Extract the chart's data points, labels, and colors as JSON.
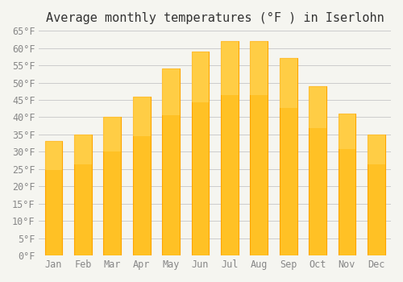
{
  "title": "Average monthly temperatures (°F ) in Iserlohn",
  "months": [
    "Jan",
    "Feb",
    "Mar",
    "Apr",
    "May",
    "Jun",
    "Jul",
    "Aug",
    "Sep",
    "Oct",
    "Nov",
    "Dec"
  ],
  "values": [
    33,
    35,
    40,
    46,
    54,
    59,
    62,
    62,
    57,
    49,
    41,
    35
  ],
  "bar_color": "#FFC125",
  "bar_edge_color": "#FFA500",
  "background_color": "#F5F5F0",
  "ylim": [
    0,
    65
  ],
  "ytick_step": 5,
  "title_fontsize": 11,
  "tick_fontsize": 8.5,
  "font_family": "monospace"
}
